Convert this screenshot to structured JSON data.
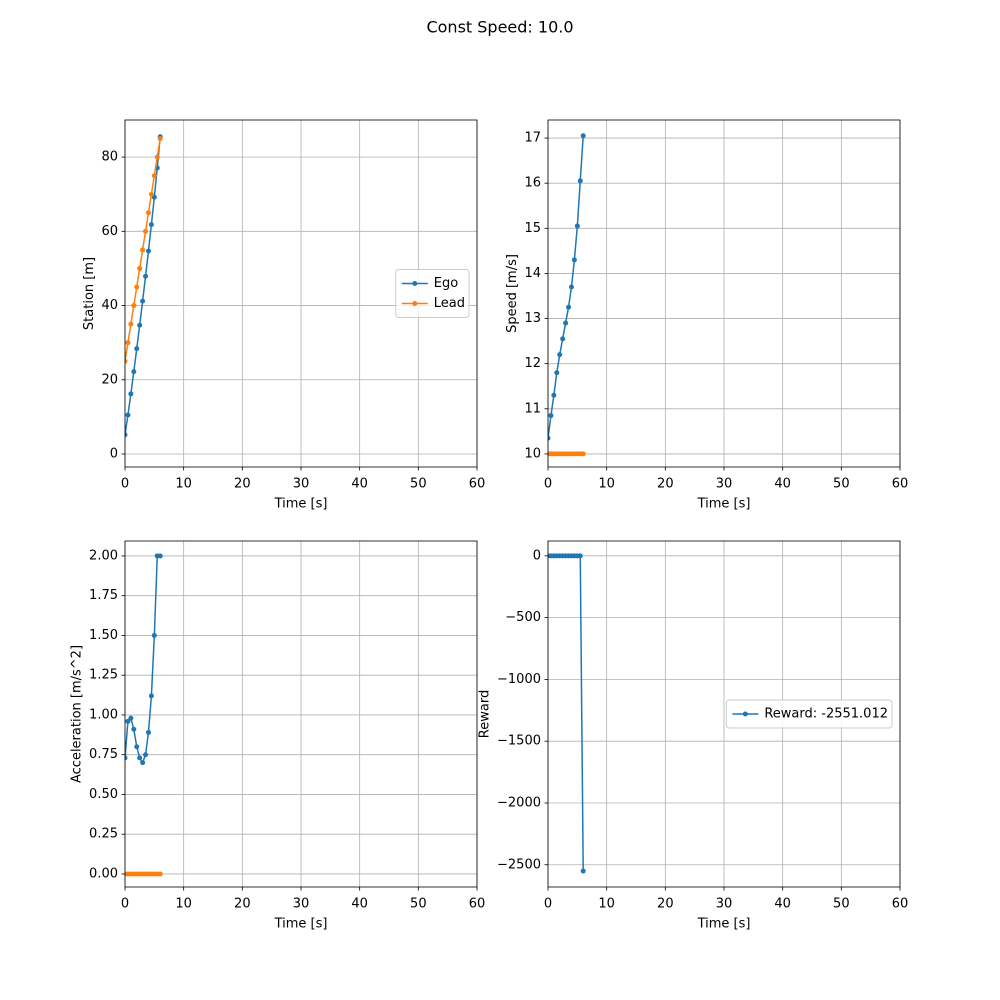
{
  "title": "Const Speed: 10.0",
  "chart_data": [
    {
      "type": "line",
      "xlabel": "Time [s]",
      "ylabel": "Station [m]",
      "xlim": [
        0,
        60
      ],
      "xticks": [
        0,
        10,
        20,
        30,
        40,
        50,
        60
      ],
      "ylim": [
        -3.5,
        90
      ],
      "yticks": [
        0,
        20,
        40,
        60,
        80
      ],
      "grid": true,
      "legend": "center right",
      "series": [
        {
          "name": "Ego",
          "color": "#1f77b4",
          "x": [
            0,
            0.5,
            1,
            1.5,
            2,
            2.5,
            3,
            3.5,
            4,
            4.5,
            5,
            5.5,
            6
          ],
          "values": [
            5.2,
            10.5,
            16.2,
            22.2,
            28.4,
            34.7,
            41.2,
            47.9,
            54.7,
            61.8,
            69.2,
            77.1,
            85.5
          ]
        },
        {
          "name": "Lead",
          "color": "#ff7f0e",
          "x": [
            0,
            0.5,
            1,
            1.5,
            2,
            2.5,
            3,
            3.5,
            4,
            4.5,
            5,
            5.5,
            6
          ],
          "values": [
            25,
            30,
            35,
            40,
            45,
            50,
            55,
            60,
            65,
            70,
            75,
            80,
            85
          ]
        }
      ]
    },
    {
      "type": "line",
      "xlabel": "Time [s]",
      "ylabel": "Speed [m/s]",
      "xlim": [
        0,
        60
      ],
      "xticks": [
        0,
        10,
        20,
        30,
        40,
        50,
        60
      ],
      "ylim": [
        9.71,
        17.4
      ],
      "yticks": [
        10,
        11,
        12,
        13,
        14,
        15,
        16,
        17
      ],
      "grid": true,
      "series": [
        {
          "color": "#1f77b4",
          "x": [
            0,
            0.5,
            1,
            1.5,
            2,
            2.5,
            3,
            3.5,
            4,
            4.5,
            5,
            5.5,
            6
          ],
          "values": [
            10.35,
            10.85,
            11.3,
            11.8,
            12.2,
            12.55,
            12.9,
            13.25,
            13.7,
            14.3,
            15.05,
            16.05,
            17.05
          ]
        },
        {
          "color": "#ff7f0e",
          "x": [
            0,
            0.5,
            1,
            1.5,
            2,
            2.5,
            3,
            3.5,
            4,
            4.5,
            5,
            5.5,
            6
          ],
          "values": [
            10,
            10,
            10,
            10,
            10,
            10,
            10,
            10,
            10,
            10,
            10,
            10,
            10
          ]
        }
      ]
    },
    {
      "type": "line",
      "xlabel": "Time [s]",
      "ylabel": "Acceleration [m/s^2]",
      "xlim": [
        0,
        60
      ],
      "xticks": [
        0,
        10,
        20,
        30,
        40,
        50,
        60
      ],
      "ylim": [
        -0.082,
        2.094
      ],
      "yticks": [
        {
          "value": 0,
          "label": "0.00"
        },
        {
          "value": 0.25,
          "label": "0.25"
        },
        {
          "value": 0.5,
          "label": "0.50"
        },
        {
          "value": 0.75,
          "label": "0.75"
        },
        {
          "value": 1,
          "label": "1.00"
        },
        {
          "value": 1.25,
          "label": "1.25"
        },
        {
          "value": 1.5,
          "label": "1.50"
        },
        {
          "value": 1.75,
          "label": "1.75"
        },
        {
          "value": 2,
          "label": "2.00"
        }
      ],
      "grid": true,
      "series": [
        {
          "color": "#1f77b4",
          "x": [
            0,
            0.5,
            1,
            1.5,
            2,
            2.5,
            3,
            3.5,
            4,
            4.5,
            5,
            5.5,
            6
          ],
          "values": [
            0.73,
            0.96,
            0.98,
            0.91,
            0.8,
            0.73,
            0.7,
            0.75,
            0.89,
            1.12,
            1.5,
            2.0,
            2.0
          ]
        },
        {
          "color": "#ff7f0e",
          "x": [
            0,
            0.5,
            1,
            1.5,
            2,
            2.5,
            3,
            3.5,
            4,
            4.5,
            5,
            5.5,
            6
          ],
          "values": [
            0,
            0,
            0,
            0,
            0,
            0,
            0,
            0,
            0,
            0,
            0,
            0,
            0
          ]
        }
      ]
    },
    {
      "type": "line",
      "xlabel": "Time [s]",
      "ylabel": "Reward",
      "xlim": [
        0,
        60
      ],
      "xticks": [
        0,
        10,
        20,
        30,
        40,
        50,
        60
      ],
      "ylim": [
        -2680,
        120
      ],
      "yticks": [
        0,
        {
          "value": -500,
          "label": "−500"
        },
        {
          "value": -1000,
          "label": "−1000"
        },
        {
          "value": -1500,
          "label": "−1500"
        },
        {
          "value": -2000,
          "label": "−2000"
        },
        {
          "value": -2500,
          "label": "−2500"
        }
      ],
      "grid": true,
      "legend": "center right",
      "series": [
        {
          "name": "Reward: -2551.012",
          "color": "#1f77b4",
          "x": [
            0,
            0.5,
            1,
            1.5,
            2,
            2.5,
            3,
            3.5,
            4,
            4.5,
            5,
            5.5,
            6
          ],
          "values": [
            0,
            0,
            0,
            0,
            0,
            0,
            0,
            0,
            0,
            0,
            0,
            0,
            -2551.012
          ]
        }
      ]
    }
  ]
}
